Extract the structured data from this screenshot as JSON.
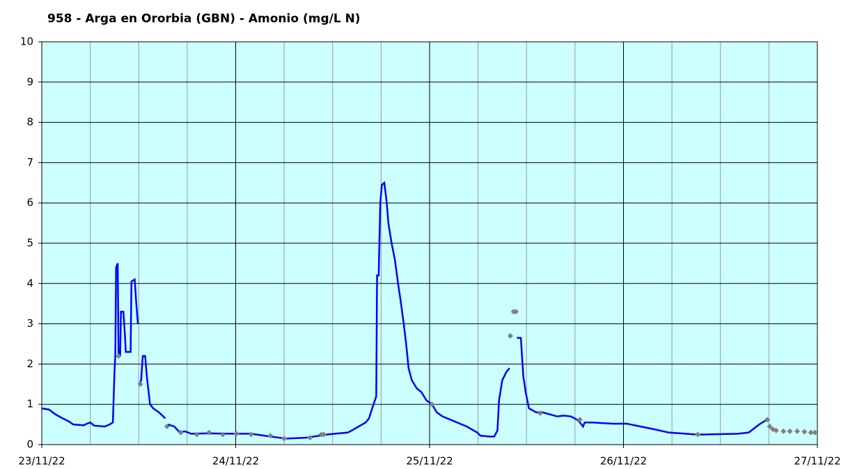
{
  "chart_data": {
    "type": "line",
    "title": "958 - Arga en Ororbia (GBN) - Amonio (mg/L N)",
    "xlim": [
      0,
      96
    ],
    "ylim": [
      0,
      10
    ],
    "xticks": [
      {
        "value": 0,
        "label": "23/11/22"
      },
      {
        "value": 24,
        "label": "24/11/22"
      },
      {
        "value": 48,
        "label": "25/11/22"
      },
      {
        "value": 72,
        "label": "26/11/22"
      },
      {
        "value": 96,
        "label": "27/11/22"
      }
    ],
    "xminorticks": [
      6,
      12,
      18,
      30,
      36,
      42,
      54,
      60,
      66,
      78,
      84,
      90
    ],
    "yticks": [
      0,
      1,
      2,
      3,
      4,
      5,
      6,
      7,
      8,
      9,
      10
    ],
    "grid": true,
    "background": "#ccffff",
    "series": [
      {
        "type": "line",
        "color": "#0000ff",
        "x": [
          0,
          0.9,
          1.7,
          2.6,
          3.4,
          3.9,
          5.2,
          5.6,
          6.0,
          6.5,
          7.8,
          8.4,
          8.8,
          9.0,
          9.1,
          9.2,
          9.4,
          9.5,
          9.7,
          9.8,
          10.1,
          10.3,
          10.4,
          11.0,
          11.1,
          11.5,
          11.7,
          11.9,
          12.0,
          12.1,
          12.3,
          12.5,
          12.8,
          13.0,
          13.4,
          13.8,
          14.5,
          15.3,
          15.4,
          15.6,
          16.4,
          17.1,
          17.7,
          18.5,
          20.7,
          23.3,
          25.9,
          27.6,
          30.2,
          32.7,
          35.3,
          37.9,
          38.8,
          40.1,
          40.5,
          40.9,
          41.4,
          41.5,
          41.7,
          41.9,
          42.1,
          42.4,
          42.7,
          42.9,
          43.3,
          43.7,
          44.1,
          44.4,
          44.8,
          45.1,
          45.4,
          45.8,
          46.4,
          47.0,
          47.6,
          48.3,
          48.9,
          49.6,
          50.8,
          52.6,
          53.9,
          54.3,
          55.6,
          56.0,
          56.4,
          56.6,
          57.0,
          57.5,
          57.9,
          58.3,
          58.8,
          59.3,
          59.6,
          59.9,
          60.3,
          61.2,
          62.0,
          62.9,
          63.8,
          64.6,
          65.5,
          66.4,
          67.0,
          67.2,
          68.1,
          70.7,
          72.4,
          74.1,
          75.8,
          77.6,
          81.0,
          81.9,
          86.2,
          87.5,
          88.8,
          89.6,
          90.1
        ],
        "values": [
          0.9,
          0.87,
          0.75,
          0.65,
          0.57,
          0.5,
          0.48,
          0.52,
          0.55,
          0.47,
          0.45,
          0.5,
          0.55,
          1.8,
          2.2,
          4.4,
          4.5,
          2.2,
          2.2,
          3.3,
          3.3,
          2.7,
          2.3,
          2.3,
          4.05,
          4.1,
          3.5,
          3.0,
          null,
          1.5,
          1.6,
          2.2,
          2.2,
          1.7,
          1.0,
          0.9,
          0.8,
          0.65,
          null,
          0.5,
          0.45,
          0.3,
          0.33,
          0.27,
          0.28,
          0.27,
          0.27,
          0.22,
          0.15,
          0.17,
          0.25,
          0.3,
          0.4,
          0.55,
          0.65,
          0.9,
          1.2,
          4.2,
          4.2,
          6.0,
          6.45,
          6.5,
          6.0,
          5.5,
          5.0,
          4.6,
          4.0,
          3.6,
          3.0,
          2.5,
          1.9,
          1.6,
          1.4,
          1.3,
          1.1,
          1.0,
          0.8,
          0.7,
          0.6,
          0.45,
          0.3,
          0.22,
          0.2,
          0.2,
          0.35,
          1.1,
          1.6,
          1.8,
          1.9,
          null,
          2.65,
          2.65,
          1.7,
          1.3,
          0.9,
          0.8,
          0.8,
          0.75,
          0.7,
          0.72,
          0.7,
          0.6,
          0.45,
          0.55,
          0.55,
          0.52,
          0.52,
          0.45,
          0.38,
          0.3,
          0.25,
          0.25,
          0.27,
          0.3,
          0.5,
          0.6,
          0.62
        ]
      },
      {
        "type": "scatter",
        "color": "#808080",
        "x": [
          9.5,
          12.2,
          15.5,
          17.2,
          19.2,
          20.7,
          22.4,
          24.1,
          25.9,
          28.3,
          30.0,
          33.2,
          34.6,
          34.9,
          48.3,
          58.0,
          58.4,
          58.7,
          61.7,
          66.6,
          81.2,
          89.8,
          90.1,
          90.5,
          90.9,
          91.8,
          92.6,
          93.5,
          94.4,
          95.2,
          95.7
        ],
        "values": [
          2.2,
          1.5,
          0.45,
          0.3,
          0.25,
          0.3,
          0.25,
          0.27,
          0.25,
          0.22,
          0.15,
          0.17,
          0.25,
          0.25,
          1.0,
          2.7,
          3.3,
          3.3,
          0.78,
          0.62,
          0.25,
          0.62,
          0.45,
          0.38,
          0.35,
          0.33,
          0.33,
          0.33,
          0.32,
          0.3,
          0.3
        ]
      }
    ]
  }
}
